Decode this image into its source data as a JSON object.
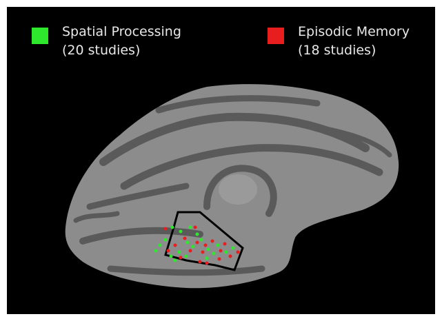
{
  "legend": [
    {
      "label": "Spatial Processing",
      "detail": "(20 studies)",
      "color": "#2ee82e"
    },
    {
      "label": "Episodic Memory",
      "detail": "(18 studies)",
      "color": "#e81e1e"
    }
  ]
}
